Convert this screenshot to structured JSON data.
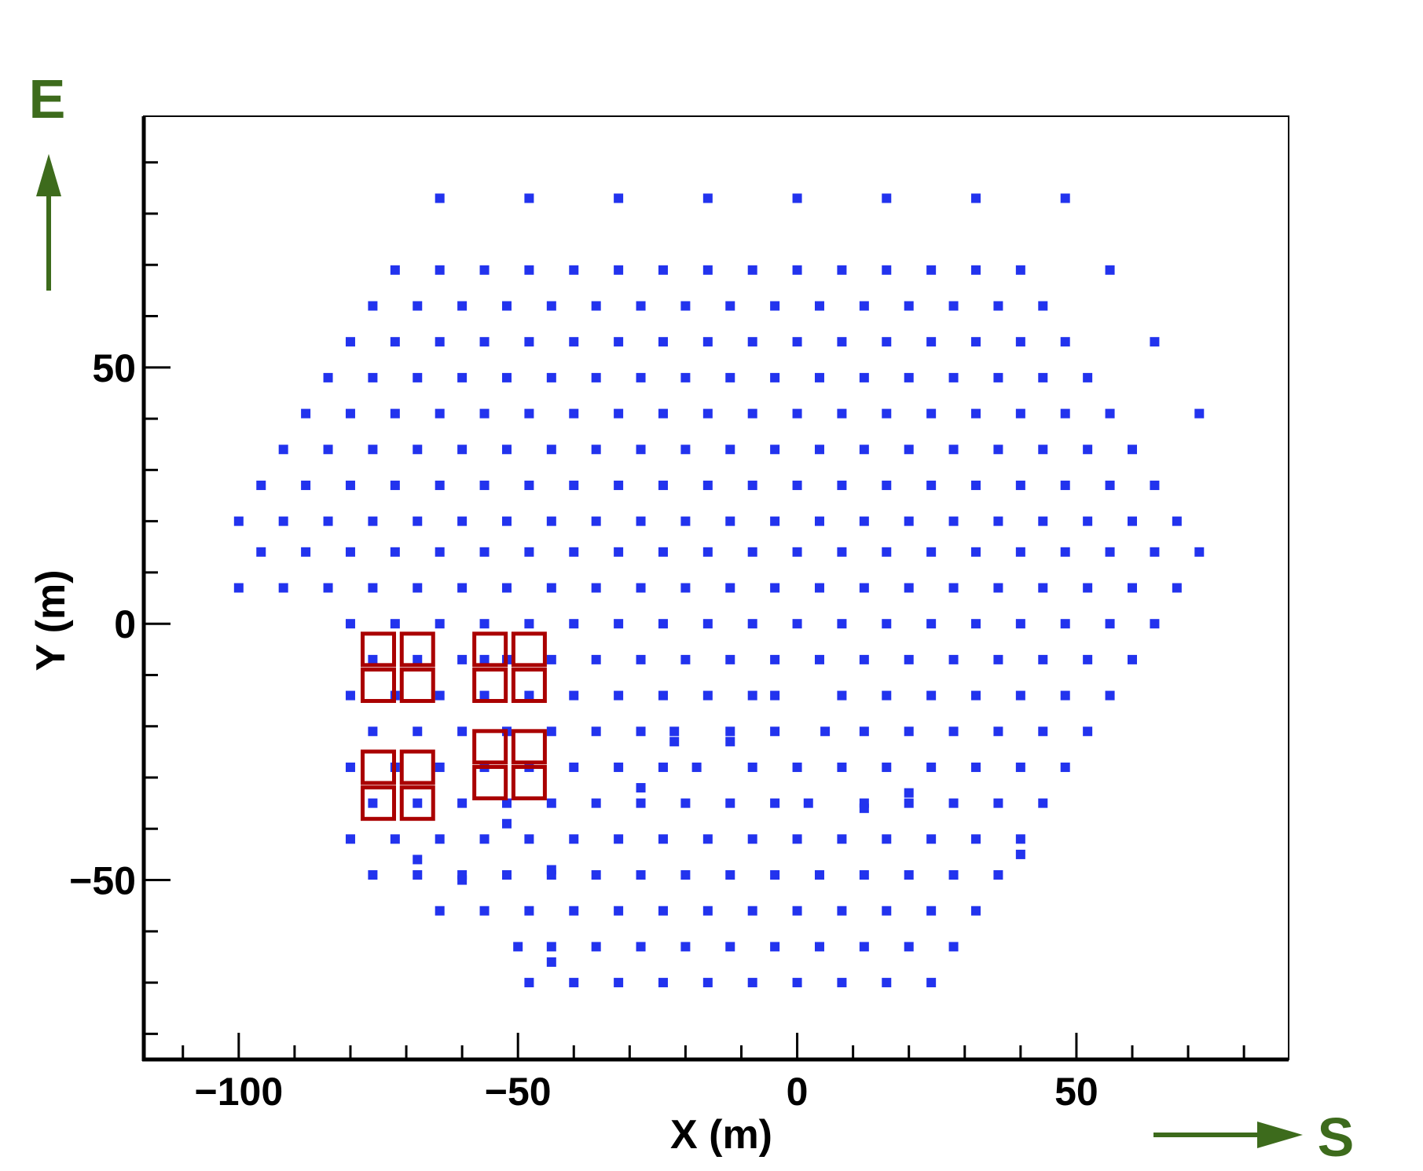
{
  "colors": {
    "point": "#2233ee",
    "box": "#aa0000",
    "compass": "#3d6b1c",
    "axis": "#000000"
  },
  "compass": {
    "east_label": "E",
    "south_label": "S"
  },
  "chart_data": {
    "type": "scatter",
    "title": "",
    "xlabel": "X (m)",
    "ylabel": "Y (m)",
    "xlim": [
      -117,
      88
    ],
    "ylim": [
      -85,
      99
    ],
    "x_ticks": [
      -100,
      -50,
      0,
      50
    ],
    "x_tick_labels": [
      "−100",
      "−50",
      "0",
      "50"
    ],
    "y_ticks": [
      -50,
      0,
      50
    ],
    "y_tick_labels": [
      "−50",
      "0",
      "50"
    ],
    "x_minor_step": 10,
    "y_minor_step": 10,
    "grid": false,
    "series": [
      {
        "marker": "filled-square",
        "rows": [
          {
            "y": 83,
            "x": [
              -64,
              -48,
              -32,
              -16,
              0,
              16,
              32,
              48
            ]
          },
          {
            "y": 69,
            "x": [
              -72,
              -64,
              -56,
              -48,
              -40,
              -32,
              -24,
              -16,
              -8,
              0,
              8,
              16,
              24,
              32,
              40,
              56
            ]
          },
          {
            "y": 62,
            "x": [
              -76,
              -68,
              -60,
              -52,
              -44,
              -36,
              -28,
              -20,
              -12,
              -4,
              4,
              12,
              20,
              28,
              36,
              44
            ]
          },
          {
            "y": 55,
            "x": [
              -80,
              -72,
              -64,
              -56,
              -48,
              -40,
              -32,
              -24,
              -16,
              -8,
              0,
              8,
              16,
              24,
              32,
              40,
              48,
              64
            ]
          },
          {
            "y": 48,
            "x": [
              -84,
              -76,
              -68,
              -60,
              -52,
              -44,
              -36,
              -28,
              -20,
              -12,
              -4,
              4,
              12,
              20,
              28,
              36,
              44,
              52
            ]
          },
          {
            "y": 41,
            "x": [
              -88,
              -80,
              -72,
              -64,
              -56,
              -48,
              -40,
              -32,
              -24,
              -16,
              -8,
              0,
              8,
              16,
              24,
              32,
              40,
              48,
              56,
              72
            ]
          },
          {
            "y": 34,
            "x": [
              -92,
              -84,
              -76,
              -68,
              -60,
              -52,
              -44,
              -36,
              -28,
              -20,
              -12,
              -4,
              4,
              12,
              20,
              28,
              36,
              44,
              52,
              60
            ]
          },
          {
            "y": 27,
            "x": [
              -96,
              -88,
              -80,
              -72,
              -64,
              -56,
              -48,
              -40,
              -32,
              -24,
              -16,
              -8,
              0,
              8,
              16,
              24,
              32,
              40,
              48,
              56,
              64
            ]
          },
          {
            "y": 20,
            "x": [
              -100,
              -92,
              -84,
              -76,
              -68,
              -60,
              -52,
              -44,
              -36,
              -28,
              -20,
              -12,
              -4,
              4,
              12,
              20,
              28,
              36,
              44,
              52,
              60,
              68
            ]
          },
          {
            "y": 14,
            "x": [
              -96,
              -88,
              -80,
              -72,
              -64,
              -56,
              -48,
              -40,
              -32,
              -24,
              -16,
              -8,
              0,
              8,
              16,
              24,
              32,
              40,
              48,
              56,
              64,
              72
            ]
          },
          {
            "y": 7,
            "x": [
              -100,
              -92,
              -84,
              -76,
              -68,
              -60,
              -52,
              -44,
              -36,
              -28,
              -20,
              -12,
              -4,
              4,
              12,
              20,
              28,
              36,
              44,
              52,
              60,
              68
            ]
          },
          {
            "y": 0,
            "x": [
              -80,
              -72,
              -64,
              -56,
              -48,
              -40,
              -32,
              -24,
              -16,
              -8,
              0,
              8,
              16,
              24,
              32,
              40,
              48,
              56,
              64
            ]
          },
          {
            "y": -7,
            "x": [
              -76,
              -68,
              -60,
              -52,
              -44,
              -36,
              -28,
              -20,
              -12,
              -4,
              4,
              12,
              20,
              28,
              36,
              44,
              52,
              60
            ]
          },
          {
            "y": -14,
            "x": [
              -80,
              -72,
              -64,
              -56,
              -48,
              -40,
              -32,
              -24,
              -16,
              -8,
              -4,
              8,
              16,
              24,
              32,
              40,
              48,
              56
            ]
          },
          {
            "y": -21,
            "x": [
              -76,
              -68,
              -60,
              -52,
              -44,
              -36,
              -28,
              -22,
              -12,
              -4,
              5,
              12,
              20,
              28,
              36,
              44,
              52
            ]
          },
          {
            "y": -28,
            "x": [
              -80,
              -72,
              -64,
              -56,
              -48,
              -40,
              -32,
              -24,
              -18,
              -8,
              0,
              8,
              16,
              24,
              32,
              40,
              48
            ]
          },
          {
            "y": -35,
            "x": [
              -76,
              -68,
              -60,
              -52,
              -44,
              -36,
              -28,
              -20,
              -12,
              -4,
              2,
              12,
              20,
              28,
              36,
              44
            ]
          },
          {
            "y": -42,
            "x": [
              -80,
              -72,
              -64,
              -56,
              -48,
              -40,
              -32,
              -24,
              -16,
              -8,
              0,
              8,
              16,
              24,
              32,
              40
            ]
          },
          {
            "y": -49,
            "x": [
              -76,
              -68,
              -60,
              -52,
              -44,
              -36,
              -28,
              -20,
              -12,
              -4,
              4,
              12,
              20,
              28,
              36
            ]
          },
          {
            "y": -56,
            "x": [
              -64,
              -56,
              -48,
              -40,
              -32,
              -24,
              -16,
              -8,
              0,
              8,
              16,
              24,
              32
            ]
          },
          {
            "y": -63,
            "x": [
              -50,
              -44,
              -36,
              -28,
              -20,
              -12,
              -4,
              4,
              12,
              20,
              28
            ]
          },
          {
            "y": -70,
            "x": [
              -48,
              -40,
              -32,
              -24,
              -16,
              -8,
              0,
              8,
              16,
              24
            ]
          }
        ],
        "extra_points": [
          {
            "x": -52,
            "y": -39
          },
          {
            "x": -44,
            "y": -48
          },
          {
            "x": -60,
            "y": -50
          },
          {
            "x": -68,
            "y": -46
          },
          {
            "x": -44,
            "y": -66
          },
          {
            "x": -28,
            "y": -32
          },
          {
            "x": -22,
            "y": -23
          },
          {
            "x": -12,
            "y": -23
          },
          {
            "x": 12,
            "y": -36
          },
          {
            "x": 20,
            "y": -33
          },
          {
            "x": 40,
            "y": -45
          },
          {
            "x": -56,
            "y": -7
          }
        ]
      },
      {
        "marker": "open-square",
        "points": [
          {
            "x": -75,
            "y": -5
          },
          {
            "x": -68,
            "y": -5
          },
          {
            "x": -75,
            "y": -12
          },
          {
            "x": -68,
            "y": -12
          },
          {
            "x": -55,
            "y": -5
          },
          {
            "x": -48,
            "y": -5
          },
          {
            "x": -55,
            "y": -12
          },
          {
            "x": -48,
            "y": -12
          },
          {
            "x": -75,
            "y": -28
          },
          {
            "x": -68,
            "y": -28
          },
          {
            "x": -75,
            "y": -35
          },
          {
            "x": -68,
            "y": -35
          },
          {
            "x": -55,
            "y": -24
          },
          {
            "x": -48,
            "y": -24
          },
          {
            "x": -55,
            "y": -31
          },
          {
            "x": -48,
            "y": -31
          }
        ]
      }
    ]
  }
}
